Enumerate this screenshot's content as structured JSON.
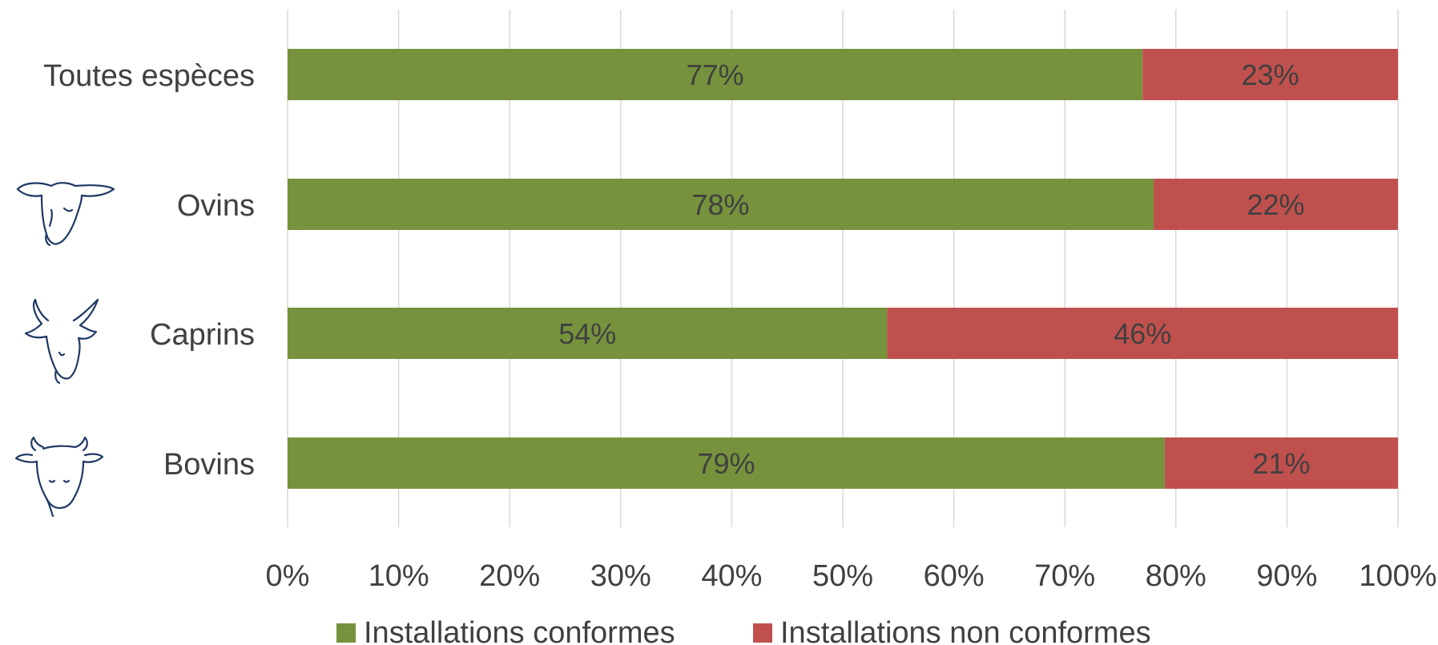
{
  "chart_data": {
    "type": "bar",
    "orientation": "horizontal",
    "stacked": true,
    "categories": [
      "Toutes espèces",
      "Ovins",
      "Caprins",
      "Bovins"
    ],
    "series": [
      {
        "name": "Installations conformes",
        "color": "#76923c",
        "values": [
          77,
          78,
          54,
          79
        ],
        "labels": [
          "77%",
          "78%",
          "54%",
          "79%"
        ]
      },
      {
        "name": "Installations non conformes",
        "color": "#c0504d",
        "values": [
          23,
          22,
          46,
          21
        ],
        "labels": [
          "23%",
          "22%",
          "46%",
          "21%"
        ]
      }
    ],
    "xlim": [
      0,
      100
    ],
    "xticks": [
      "0%",
      "10%",
      "20%",
      "30%",
      "40%",
      "50%",
      "60%",
      "70%",
      "80%",
      "90%",
      "100%"
    ],
    "grid": true,
    "legend_position": "bottom",
    "icons": [
      "",
      "sheep-icon",
      "goat-icon",
      "cow-icon"
    ]
  }
}
